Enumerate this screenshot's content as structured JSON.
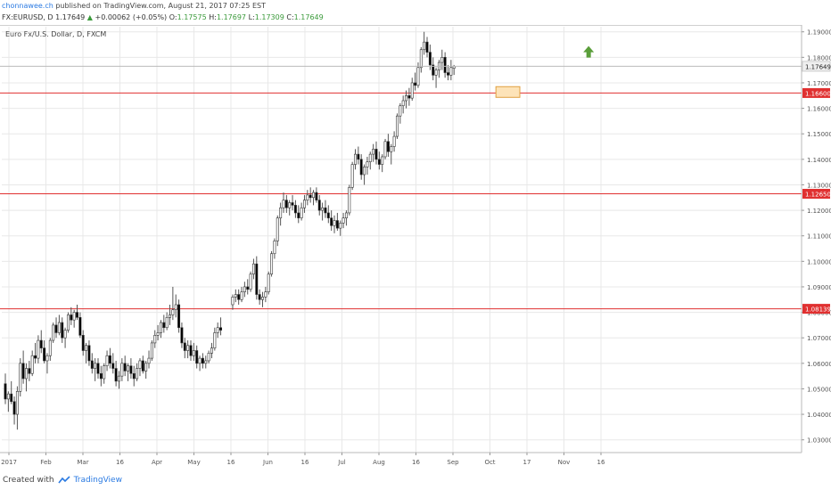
{
  "header": {
    "author": "chonnawee.ch",
    "published_text": " published on TradingView.com, August 21, 2017 07:25 EST",
    "symbol_line": "FX:EURUSD, D",
    "last_price": "1.17649",
    "change": "+0.00062 (+0.05%)",
    "o_label": "O:",
    "o_val": "1.17575",
    "h_label": "H:",
    "h_val": "1.17697",
    "l_label": "L:",
    "l_val": "1.17309",
    "c_label": "C:",
    "c_val": "1.17649"
  },
  "footer": {
    "created_with": "Created with",
    "brand": "TradingView"
  },
  "colors": {
    "up": "#ffffff",
    "down": "#000000",
    "wick": "#555555",
    "level": "#e03030",
    "grid": "#e8e8e8",
    "zone_fill": "#fde3b8",
    "zone_stroke": "#e0a040",
    "arrow": "#5a9e3a",
    "last_price_badge": "#efefef"
  },
  "chart_data": {
    "type": "candlestick",
    "title": "Euro Fx/U.S. Dollar, D, FXCM",
    "ylim": [
      1.025,
      1.192
    ],
    "y_ticks": [
      "1.03000",
      "1.04000",
      "1.05000",
      "1.06000",
      "1.07000",
      "1.08000",
      "1.09000",
      "1.10000",
      "1.11000",
      "1.12000",
      "1.13000",
      "1.14000",
      "1.15000",
      "1.16000",
      "1.17000",
      "1.18000",
      "1.19000"
    ],
    "x_tick_labels": [
      "2017",
      "Feb",
      "Mar",
      "16",
      "Apr",
      "May",
      "16",
      "Jun",
      "16",
      "Jul",
      "Aug",
      "16",
      "Sep",
      "Oct",
      "17",
      "Nov",
      "16"
    ],
    "horizontal_levels": [
      {
        "value": 1.166,
        "label": "1.16600"
      },
      {
        "value": 1.1265,
        "label": "1.12650"
      },
      {
        "value": 1.08139,
        "label": "1.08139"
      }
    ],
    "last_price": {
      "value": 1.17649,
      "label": "1.17649"
    },
    "highlight_zone": {
      "x_start": 164,
      "x_end": 172,
      "y_low": 1.1643,
      "y_high": 1.1685
    },
    "up_arrow": {
      "x": 195,
      "y": 1.182
    },
    "x_domain": [
      0,
      265
    ],
    "candles": [
      [
        0,
        1.052,
        1.056,
        1.044,
        1.046
      ],
      [
        1,
        1.046,
        1.049,
        1.041,
        1.048
      ],
      [
        2,
        1.048,
        1.053,
        1.044,
        1.045
      ],
      [
        3,
        1.045,
        1.047,
        1.036,
        1.04
      ],
      [
        4,
        1.04,
        1.051,
        1.034,
        1.049
      ],
      [
        5,
        1.049,
        1.062,
        1.047,
        1.06
      ],
      [
        6,
        1.06,
        1.065,
        1.052,
        1.054
      ],
      [
        7,
        1.054,
        1.06,
        1.049,
        1.058
      ],
      [
        8,
        1.058,
        1.061,
        1.053,
        1.056
      ],
      [
        9,
        1.056,
        1.065,
        1.055,
        1.063
      ],
      [
        10,
        1.063,
        1.068,
        1.06,
        1.062
      ],
      [
        11,
        1.062,
        1.071,
        1.06,
        1.069
      ],
      [
        12,
        1.069,
        1.073,
        1.064,
        1.066
      ],
      [
        13,
        1.066,
        1.069,
        1.06,
        1.061
      ],
      [
        14,
        1.061,
        1.064,
        1.056,
        1.063
      ],
      [
        15,
        1.063,
        1.07,
        1.061,
        1.069
      ],
      [
        16,
        1.069,
        1.076,
        1.068,
        1.075
      ],
      [
        17,
        1.075,
        1.078,
        1.07,
        1.072
      ],
      [
        18,
        1.072,
        1.079,
        1.071,
        1.076
      ],
      [
        19,
        1.076,
        1.078,
        1.068,
        1.07
      ],
      [
        20,
        1.07,
        1.074,
        1.066,
        1.073
      ],
      [
        21,
        1.073,
        1.08,
        1.072,
        1.079
      ],
      [
        22,
        1.079,
        1.082,
        1.075,
        1.077
      ],
      [
        23,
        1.077,
        1.081,
        1.074,
        1.08
      ],
      [
        24,
        1.08,
        1.083,
        1.077,
        1.078
      ],
      [
        25,
        1.078,
        1.08,
        1.07,
        1.071
      ],
      [
        26,
        1.071,
        1.073,
        1.063,
        1.065
      ],
      [
        27,
        1.065,
        1.068,
        1.06,
        1.067
      ],
      [
        28,
        1.067,
        1.069,
        1.059,
        1.061
      ],
      [
        29,
        1.061,
        1.064,
        1.056,
        1.058
      ],
      [
        30,
        1.058,
        1.062,
        1.053,
        1.06
      ],
      [
        31,
        1.06,
        1.062,
        1.054,
        1.056
      ],
      [
        32,
        1.056,
        1.059,
        1.051,
        1.054
      ],
      [
        33,
        1.054,
        1.06,
        1.052,
        1.059
      ],
      [
        34,
        1.059,
        1.065,
        1.057,
        1.063
      ],
      [
        35,
        1.063,
        1.066,
        1.058,
        1.06
      ],
      [
        36,
        1.06,
        1.064,
        1.056,
        1.058
      ],
      [
        37,
        1.058,
        1.061,
        1.051,
        1.053
      ],
      [
        38,
        1.053,
        1.057,
        1.05,
        1.055
      ],
      [
        39,
        1.055,
        1.062,
        1.053,
        1.06
      ],
      [
        40,
        1.06,
        1.063,
        1.055,
        1.057
      ],
      [
        41,
        1.057,
        1.06,
        1.053,
        1.059
      ],
      [
        42,
        1.059,
        1.062,
        1.054,
        1.056
      ],
      [
        43,
        1.056,
        1.059,
        1.051,
        1.054
      ],
      [
        44,
        1.054,
        1.06,
        1.053,
        1.058
      ],
      [
        45,
        1.058,
        1.062,
        1.055,
        1.061
      ],
      [
        46,
        1.061,
        1.063,
        1.056,
        1.057
      ],
      [
        47,
        1.057,
        1.061,
        1.054,
        1.06
      ],
      [
        48,
        1.06,
        1.065,
        1.058,
        1.062
      ],
      [
        49,
        1.062,
        1.069,
        1.061,
        1.068
      ],
      [
        50,
        1.068,
        1.073,
        1.066,
        1.071
      ],
      [
        51,
        1.071,
        1.075,
        1.069,
        1.072
      ],
      [
        52,
        1.072,
        1.077,
        1.07,
        1.076
      ],
      [
        53,
        1.076,
        1.079,
        1.072,
        1.074
      ],
      [
        54,
        1.074,
        1.08,
        1.073,
        1.078
      ],
      [
        55,
        1.078,
        1.083,
        1.075,
        1.079
      ],
      [
        56,
        1.079,
        1.09,
        1.077,
        1.081
      ],
      [
        57,
        1.081,
        1.087,
        1.078,
        1.083
      ],
      [
        58,
        1.083,
        1.085,
        1.072,
        1.074
      ],
      [
        59,
        1.074,
        1.076,
        1.066,
        1.068
      ],
      [
        60,
        1.068,
        1.07,
        1.062,
        1.065
      ],
      [
        61,
        1.065,
        1.069,
        1.062,
        1.067
      ],
      [
        62,
        1.067,
        1.069,
        1.061,
        1.063
      ],
      [
        63,
        1.063,
        1.068,
        1.061,
        1.065
      ],
      [
        64,
        1.065,
        1.067,
        1.058,
        1.06
      ],
      [
        65,
        1.06,
        1.063,
        1.057,
        1.062
      ],
      [
        66,
        1.062,
        1.064,
        1.058,
        1.06
      ],
      [
        67,
        1.06,
        1.063,
        1.058,
        1.061
      ],
      [
        68,
        1.061,
        1.065,
        1.06,
        1.064
      ],
      [
        69,
        1.064,
        1.068,
        1.062,
        1.066
      ],
      [
        70,
        1.066,
        1.074,
        1.065,
        1.072
      ],
      [
        71,
        1.072,
        1.076,
        1.07,
        1.074
      ],
      [
        72,
        1.074,
        1.078,
        1.071,
        1.073
      ],
      [
        76,
        1.083,
        1.087,
        1.081,
        1.086
      ],
      [
        77,
        1.086,
        1.089,
        1.084,
        1.087
      ],
      [
        78,
        1.087,
        1.089,
        1.083,
        1.085
      ],
      [
        79,
        1.085,
        1.09,
        1.084,
        1.088
      ],
      [
        80,
        1.088,
        1.092,
        1.086,
        1.09
      ],
      [
        81,
        1.09,
        1.093,
        1.087,
        1.089
      ],
      [
        82,
        1.089,
        1.096,
        1.088,
        1.095
      ],
      [
        83,
        1.095,
        1.101,
        1.093,
        1.099
      ],
      [
        84,
        1.099,
        1.102,
        1.085,
        1.087
      ],
      [
        85,
        1.087,
        1.089,
        1.083,
        1.085
      ],
      [
        86,
        1.085,
        1.088,
        1.082,
        1.086
      ],
      [
        87,
        1.086,
        1.09,
        1.084,
        1.088
      ],
      [
        88,
        1.088,
        1.096,
        1.087,
        1.095
      ],
      [
        89,
        1.095,
        1.104,
        1.094,
        1.103
      ],
      [
        90,
        1.103,
        1.109,
        1.101,
        1.108
      ],
      [
        91,
        1.108,
        1.118,
        1.106,
        1.117
      ],
      [
        92,
        1.117,
        1.123,
        1.114,
        1.121
      ],
      [
        93,
        1.121,
        1.127,
        1.119,
        1.124
      ],
      [
        94,
        1.124,
        1.126,
        1.119,
        1.121
      ],
      [
        95,
        1.121,
        1.124,
        1.118,
        1.123
      ],
      [
        96,
        1.123,
        1.126,
        1.12,
        1.122
      ],
      [
        97,
        1.122,
        1.124,
        1.117,
        1.119
      ],
      [
        98,
        1.119,
        1.122,
        1.115,
        1.117
      ],
      [
        99,
        1.117,
        1.123,
        1.116,
        1.121
      ],
      [
        100,
        1.121,
        1.126,
        1.119,
        1.124
      ],
      [
        101,
        1.124,
        1.128,
        1.122,
        1.126
      ],
      [
        102,
        1.126,
        1.129,
        1.123,
        1.125
      ],
      [
        103,
        1.125,
        1.128,
        1.122,
        1.127
      ],
      [
        104,
        1.127,
        1.129,
        1.123,
        1.124
      ],
      [
        105,
        1.124,
        1.126,
        1.118,
        1.12
      ],
      [
        106,
        1.12,
        1.123,
        1.116,
        1.121
      ],
      [
        107,
        1.121,
        1.124,
        1.117,
        1.119
      ],
      [
        108,
        1.119,
        1.122,
        1.115,
        1.117
      ],
      [
        109,
        1.117,
        1.12,
        1.112,
        1.114
      ],
      [
        110,
        1.114,
        1.118,
        1.111,
        1.116
      ],
      [
        111,
        1.116,
        1.119,
        1.112,
        1.113
      ],
      [
        112,
        1.113,
        1.116,
        1.11,
        1.115
      ],
      [
        113,
        1.115,
        1.119,
        1.113,
        1.117
      ],
      [
        114,
        1.117,
        1.12,
        1.114,
        1.119
      ],
      [
        115,
        1.119,
        1.13,
        1.118,
        1.129
      ],
      [
        116,
        1.129,
        1.139,
        1.128,
        1.138
      ],
      [
        117,
        1.138,
        1.144,
        1.136,
        1.142
      ],
      [
        118,
        1.142,
        1.145,
        1.138,
        1.14
      ],
      [
        119,
        1.14,
        1.142,
        1.132,
        1.134
      ],
      [
        120,
        1.134,
        1.138,
        1.13,
        1.137
      ],
      [
        121,
        1.137,
        1.141,
        1.134,
        1.139
      ],
      [
        122,
        1.139,
        1.143,
        1.136,
        1.142
      ],
      [
        123,
        1.142,
        1.146,
        1.139,
        1.144
      ],
      [
        124,
        1.144,
        1.147,
        1.138,
        1.14
      ],
      [
        125,
        1.14,
        1.143,
        1.136,
        1.138
      ],
      [
        126,
        1.138,
        1.142,
        1.135,
        1.141
      ],
      [
        127,
        1.141,
        1.148,
        1.14,
        1.147
      ],
      [
        128,
        1.147,
        1.15,
        1.141,
        1.143
      ],
      [
        129,
        1.143,
        1.146,
        1.138,
        1.145
      ],
      [
        130,
        1.145,
        1.151,
        1.143,
        1.149
      ],
      [
        131,
        1.149,
        1.158,
        1.148,
        1.157
      ],
      [
        132,
        1.157,
        1.162,
        1.154,
        1.161
      ],
      [
        133,
        1.161,
        1.165,
        1.158,
        1.163
      ],
      [
        134,
        1.163,
        1.167,
        1.16,
        1.165
      ],
      [
        135,
        1.165,
        1.168,
        1.161,
        1.164
      ],
      [
        136,
        1.164,
        1.172,
        1.163,
        1.17
      ],
      [
        137,
        1.17,
        1.174,
        1.167,
        1.169
      ],
      [
        138,
        1.169,
        1.178,
        1.168,
        1.176
      ],
      [
        139,
        1.176,
        1.184,
        1.174,
        1.183
      ],
      [
        140,
        1.183,
        1.19,
        1.181,
        1.186
      ],
      [
        141,
        1.186,
        1.188,
        1.18,
        1.182
      ],
      [
        142,
        1.182,
        1.185,
        1.175,
        1.177
      ],
      [
        143,
        1.177,
        1.18,
        1.171,
        1.173
      ],
      [
        144,
        1.173,
        1.176,
        1.168,
        1.175
      ],
      [
        145,
        1.175,
        1.179,
        1.172,
        1.178
      ],
      [
        146,
        1.178,
        1.183,
        1.175,
        1.18
      ],
      [
        147,
        1.18,
        1.182,
        1.172,
        1.174
      ],
      [
        148,
        1.174,
        1.177,
        1.171,
        1.173
      ],
      [
        149,
        1.173,
        1.179,
        1.171,
        1.176
      ],
      [
        150,
        1.1757,
        1.177,
        1.1731,
        1.1765
      ]
    ]
  }
}
